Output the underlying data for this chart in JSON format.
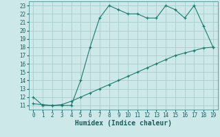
{
  "xlabel": "Humidex (Indice chaleur)",
  "line1_x": [
    0,
    1,
    2,
    3,
    4,
    5,
    6,
    7,
    8,
    9,
    10,
    11,
    12,
    13,
    14,
    15,
    16,
    17,
    18,
    19
  ],
  "line1_y": [
    12.0,
    11.0,
    11.0,
    11.0,
    11.0,
    14.0,
    18.0,
    21.5,
    23.0,
    22.5,
    22.0,
    22.0,
    21.5,
    21.5,
    23.0,
    22.5,
    21.5,
    23.0,
    20.5,
    18.0
  ],
  "line2_x": [
    0,
    1,
    2,
    3,
    4,
    5,
    6,
    7,
    8,
    9,
    10,
    11,
    12,
    13,
    14,
    15,
    16,
    17,
    18,
    19
  ],
  "line2_y": [
    11.2,
    11.1,
    11.0,
    11.1,
    11.5,
    12.0,
    12.5,
    13.0,
    13.5,
    14.0,
    14.5,
    15.0,
    15.5,
    16.0,
    16.5,
    17.0,
    17.3,
    17.6,
    17.9,
    18.0
  ],
  "line_color": "#1a7a6e",
  "background_color": "#cce8e8",
  "grid_color": "#aacccc",
  "ylim_min": 10.5,
  "ylim_max": 23.5,
  "xlim_min": -0.5,
  "xlim_max": 19.5,
  "yticks": [
    11,
    12,
    13,
    14,
    15,
    16,
    17,
    18,
    19,
    20,
    21,
    22,
    23
  ],
  "xticks": [
    0,
    1,
    2,
    3,
    4,
    5,
    6,
    7,
    8,
    9,
    10,
    11,
    12,
    13,
    14,
    15,
    16,
    17,
    18,
    19
  ],
  "tick_fontsize": 5.5,
  "xlabel_fontsize": 7.0
}
